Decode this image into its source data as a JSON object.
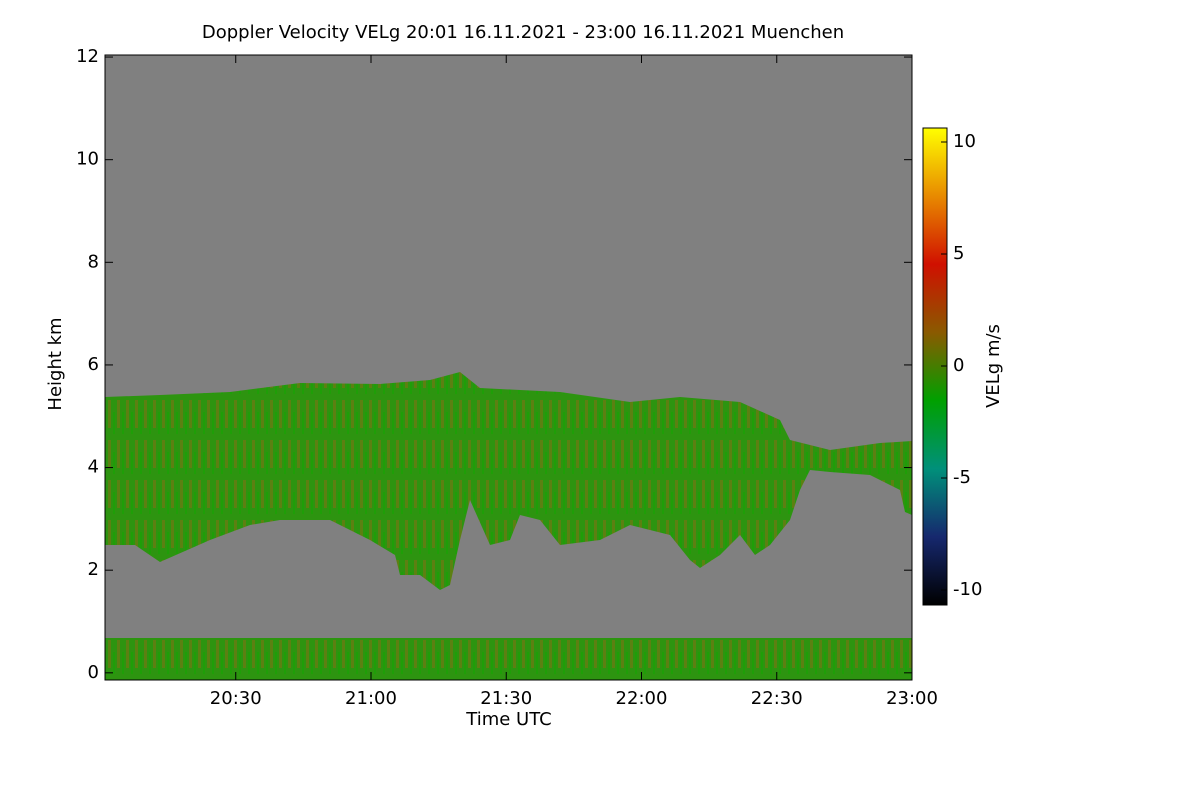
{
  "chart_data": {
    "type": "heatmap",
    "title": "Doppler Velocity VELg   20:01 16.11.2021 - 23:00 16.11.2021 Muenchen",
    "xlabel": "Time UTC",
    "ylabel": "Height km",
    "xlim": [
      20.0167,
      23.0
    ],
    "xticks": [
      {
        "value": 20.5,
        "label": "20:30"
      },
      {
        "value": 21.0,
        "label": "21:00"
      },
      {
        "value": 21.5,
        "label": "21:30"
      },
      {
        "value": 22.0,
        "label": "22:00"
      },
      {
        "value": 22.5,
        "label": "22:30"
      },
      {
        "value": 23.0,
        "label": "23:00"
      }
    ],
    "ylim": [
      -0.14,
      12.04
    ],
    "yticks": [
      0,
      2,
      4,
      6,
      8,
      10,
      12
    ],
    "colorbar": {
      "label": "VELg m/s",
      "lim": [
        -10.67,
        10.625
      ],
      "ticks": [
        -10,
        -5,
        0,
        5,
        10
      ],
      "colormap": [
        "#000000",
        "#16286e",
        "#00907a",
        "#00a000",
        "#8a5a00",
        "#d01000",
        "#e88a00",
        "#ffff00"
      ]
    },
    "background": "#808080"
  }
}
